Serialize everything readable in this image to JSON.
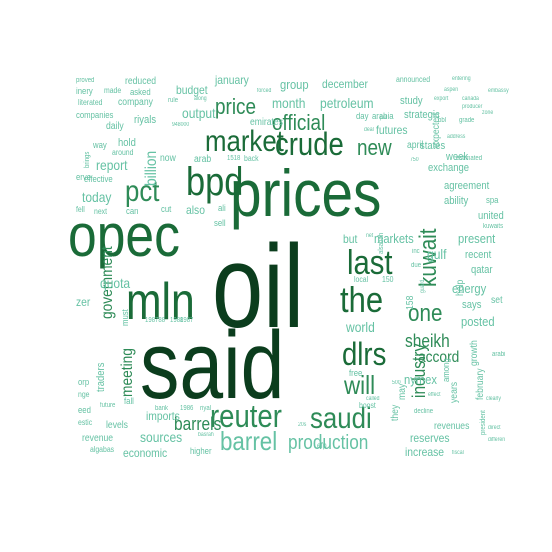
{
  "palette": {
    "darkest": "#0b3d1d",
    "dark": "#1a6b38",
    "mid": "#2e8b57",
    "light": "#66c2a4",
    "lightest": "#a6dbbf"
  },
  "words": [
    {
      "text": "oil"
    },
    {
      "text": "said"
    },
    {
      "text": "prices"
    },
    {
      "text": "opec"
    },
    {
      "text": "mln"
    },
    {
      "text": "bpd"
    },
    {
      "text": "crude"
    },
    {
      "text": "market"
    },
    {
      "text": "the"
    },
    {
      "text": "last"
    },
    {
      "text": "dlrs"
    },
    {
      "text": "reuter"
    },
    {
      "text": "saudi"
    },
    {
      "text": "barrel"
    },
    {
      "text": "pct"
    },
    {
      "text": "official"
    },
    {
      "text": "will"
    },
    {
      "text": "production"
    },
    {
      "text": "kuwait"
    },
    {
      "text": "one"
    },
    {
      "text": "price"
    },
    {
      "text": "new"
    },
    {
      "text": "barrels"
    },
    {
      "text": "industry"
    },
    {
      "text": "government"
    },
    {
      "text": "meeting"
    },
    {
      "text": "billion"
    },
    {
      "text": "sheikh"
    },
    {
      "text": "today"
    },
    {
      "text": "report"
    },
    {
      "text": "accord"
    },
    {
      "text": "sources"
    },
    {
      "text": "world"
    },
    {
      "text": "month"
    },
    {
      "text": "petroleum"
    },
    {
      "text": "output"
    },
    {
      "text": "futures"
    },
    {
      "text": "group"
    },
    {
      "text": "december"
    },
    {
      "text": "january"
    },
    {
      "text": "budget"
    },
    {
      "text": "imports"
    },
    {
      "text": "quota"
    },
    {
      "text": "gulf"
    },
    {
      "text": "markets"
    },
    {
      "text": "present"
    },
    {
      "text": "energy"
    },
    {
      "text": "posted"
    },
    {
      "text": "nymex"
    },
    {
      "text": "reserves"
    },
    {
      "text": "increase"
    },
    {
      "text": "economic"
    },
    {
      "text": "revenue"
    },
    {
      "text": "levels"
    },
    {
      "text": "years"
    },
    {
      "text": "growth"
    },
    {
      "text": "february"
    },
    {
      "text": "recent"
    },
    {
      "text": "qatar"
    },
    {
      "text": "united"
    },
    {
      "text": "agreement"
    },
    {
      "text": "ability"
    },
    {
      "text": "exchange"
    },
    {
      "text": "week"
    },
    {
      "text": "states"
    },
    {
      "text": "april"
    },
    {
      "text": "expected"
    },
    {
      "text": "study"
    },
    {
      "text": "strategic"
    },
    {
      "text": "announced"
    },
    {
      "text": "emirates"
    },
    {
      "text": "day"
    },
    {
      "text": "arabia"
    },
    {
      "text": "riyals"
    },
    {
      "text": "daily"
    },
    {
      "text": "company"
    },
    {
      "text": "asked"
    },
    {
      "text": "reduced"
    },
    {
      "text": "made"
    },
    {
      "text": "rule"
    },
    {
      "text": "hold"
    },
    {
      "text": "also"
    },
    {
      "text": "arab"
    },
    {
      "text": "now"
    },
    {
      "text": "but"
    },
    {
      "text": "says"
    },
    {
      "text": "set"
    },
    {
      "text": "help"
    },
    {
      "text": "free"
    },
    {
      "text": "they"
    },
    {
      "text": "may"
    },
    {
      "text": "boost"
    },
    {
      "text": "decline"
    },
    {
      "text": "revenues"
    },
    {
      "text": "among"
    },
    {
      "text": "traders"
    },
    {
      "text": "must"
    },
    {
      "text": "fall"
    },
    {
      "text": "future"
    },
    {
      "text": "bank"
    },
    {
      "text": "higher"
    },
    {
      "text": "sell"
    },
    {
      "text": "cut"
    },
    {
      "text": "ali"
    },
    {
      "text": "can"
    },
    {
      "text": "next"
    },
    {
      "text": "fell"
    },
    {
      "text": "effective"
    },
    {
      "text": "around"
    },
    {
      "text": "back"
    },
    {
      "text": "estimated"
    },
    {
      "text": "grade"
    },
    {
      "text": "export"
    },
    {
      "text": "producer"
    },
    {
      "text": "address"
    },
    {
      "text": "canada"
    },
    {
      "text": "embassy"
    },
    {
      "text": "aspen"
    },
    {
      "text": "local"
    },
    {
      "text": "150"
    },
    {
      "text": "158"
    },
    {
      "text": "due"
    },
    {
      "text": "inc"
    },
    {
      "text": "called"
    },
    {
      "text": "500"
    },
    {
      "text": "1988"
    },
    {
      "text": "1987"
    },
    {
      "text": "198788"
    },
    {
      "text": "1986"
    },
    {
      "text": "1518"
    },
    {
      "text": "750"
    },
    {
      "text": "efp"
    },
    {
      "text": "fiscal"
    },
    {
      "text": "president"
    },
    {
      "text": "basrah"
    },
    {
      "text": "algabas"
    },
    {
      "text": "kuwaits"
    },
    {
      "text": "arabi"
    },
    {
      "text": "bbl"
    },
    {
      "text": "along"
    },
    {
      "text": "proved"
    },
    {
      "text": "inery"
    },
    {
      "text": "literated"
    },
    {
      "text": "companies"
    },
    {
      "text": "brings"
    },
    {
      "text": "way"
    },
    {
      "text": "erve"
    },
    {
      "text": "zer"
    },
    {
      "text": "orp"
    },
    {
      "text": "nge"
    },
    {
      "text": "eed"
    },
    {
      "text": "estic"
    },
    {
      "text": "riyal"
    },
    {
      "text": "forced"
    },
    {
      "text": "put"
    },
    {
      "text": "entering"
    },
    {
      "text": "zone"
    },
    {
      "text": "deal"
    },
    {
      "text": "alsabah"
    },
    {
      "text": "spa"
    },
    {
      "text": "direct"
    },
    {
      "text": "differen"
    },
    {
      "text": "clearly"
    },
    {
      "text": "effect"
    },
    {
      "text": "948000"
    },
    {
      "text": "guard"
    },
    {
      "text": "20s"
    },
    {
      "text": "net"
    }
  ]
}
